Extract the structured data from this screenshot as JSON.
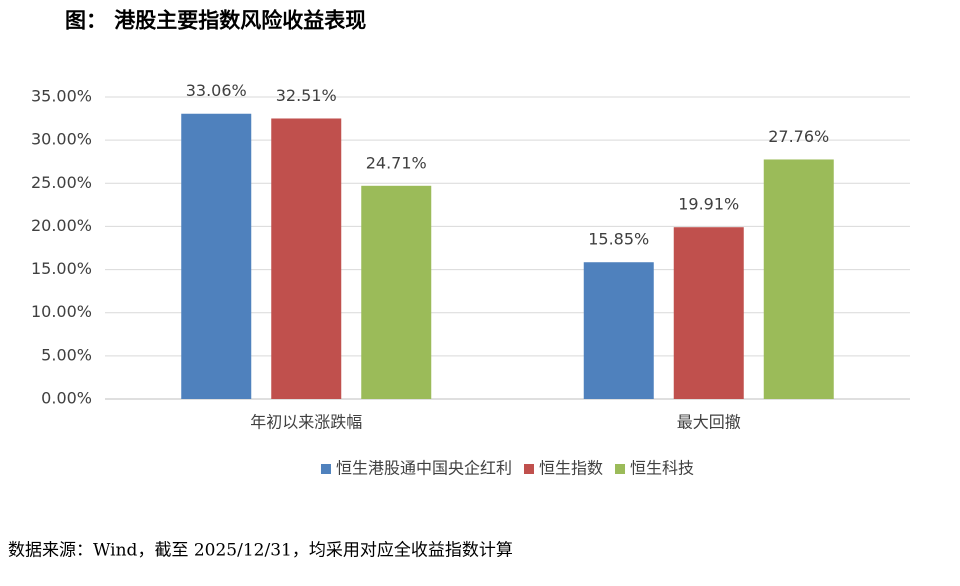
{
  "chart_data": {
    "type": "bar",
    "title": "图：  港股主要指数风险收益表现",
    "source": "数据来源：Wind，截至 2025/12/31，均采用对应全收益指数计算",
    "categories": [
      "年初以来涨跌幅",
      "最大回撤"
    ],
    "series": [
      {
        "name": "恒生港股通中国央企红利",
        "color": "#4f81bd",
        "values": [
          33.06,
          15.85
        ],
        "value_labels": [
          "33.06%",
          "15.85%"
        ]
      },
      {
        "name": "恒生指数",
        "color": "#c0504d",
        "values": [
          32.51,
          19.91
        ],
        "value_labels": [
          "32.51%",
          "19.91%"
        ]
      },
      {
        "name": "恒生科技",
        "color": "#9bbb59",
        "values": [
          24.71,
          27.76
        ],
        "value_labels": [
          "24.71%",
          "27.76%"
        ]
      }
    ],
    "ylim": [
      0,
      35
    ],
    "yticks": [
      {
        "value": 0,
        "label": "0.00%"
      },
      {
        "value": 5,
        "label": "5.00%"
      },
      {
        "value": 10,
        "label": "10.00%"
      },
      {
        "value": 15,
        "label": "15.00%"
      },
      {
        "value": 20,
        "label": "20.00%"
      },
      {
        "value": 25,
        "label": "25.00%"
      },
      {
        "value": 30,
        "label": "30.00%"
      },
      {
        "value": 35,
        "label": "35.00%"
      }
    ],
    "grid": true,
    "legend": "bottom"
  }
}
